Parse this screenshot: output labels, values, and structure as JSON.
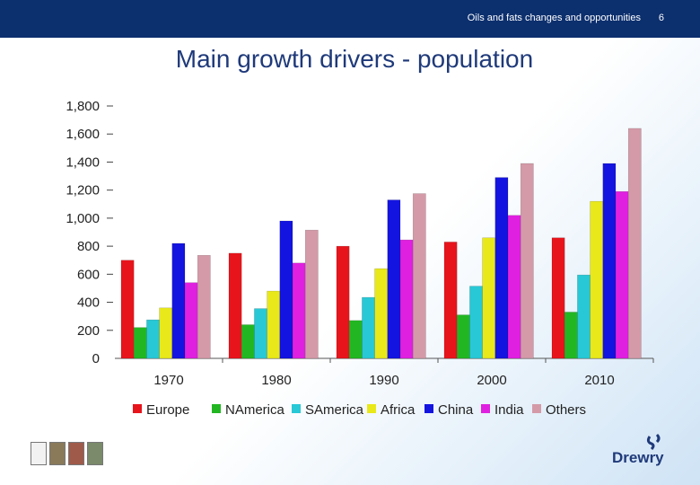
{
  "header": {
    "subtitle": "Oils and fats changes and opportunities",
    "page_number": "6"
  },
  "slide_title": "Main growth drivers - population",
  "brand": {
    "logo_text": "Drewry",
    "accent": "#0c2f6e"
  },
  "chart_data": {
    "type": "bar",
    "title": "",
    "xlabel": "",
    "ylabel": "",
    "ylim": [
      0,
      1800
    ],
    "yticks": [
      "0",
      "200",
      "400",
      "600",
      "800",
      "1,000",
      "1,200",
      "1,400",
      "1,600",
      "1,800"
    ],
    "ytick_values": [
      0,
      200,
      400,
      600,
      800,
      1000,
      1200,
      1400,
      1600,
      1800
    ],
    "categories": [
      "1970",
      "1980",
      "1990",
      "2000",
      "2010"
    ],
    "legend_position": "bottom",
    "series": [
      {
        "name": "Europe",
        "color": "#e8141c",
        "values": [
          700,
          750,
          800,
          830,
          860
        ]
      },
      {
        "name": "NAmerica",
        "color": "#22b722",
        "values": [
          220,
          240,
          270,
          310,
          330
        ]
      },
      {
        "name": "SAmerica",
        "color": "#28c8d6",
        "values": [
          275,
          355,
          435,
          515,
          595
        ]
      },
      {
        "name": "Africa",
        "color": "#e8e81a",
        "values": [
          360,
          480,
          640,
          860,
          1120
        ]
      },
      {
        "name": "China",
        "color": "#1414e0",
        "values": [
          820,
          980,
          1130,
          1290,
          1390
        ]
      },
      {
        "name": "India",
        "color": "#e020e0",
        "values": [
          540,
          680,
          845,
          1020,
          1190
        ]
      },
      {
        "name": "Others",
        "color": "#d49aa8",
        "values": [
          735,
          915,
          1175,
          1390,
          1640
        ]
      }
    ]
  }
}
